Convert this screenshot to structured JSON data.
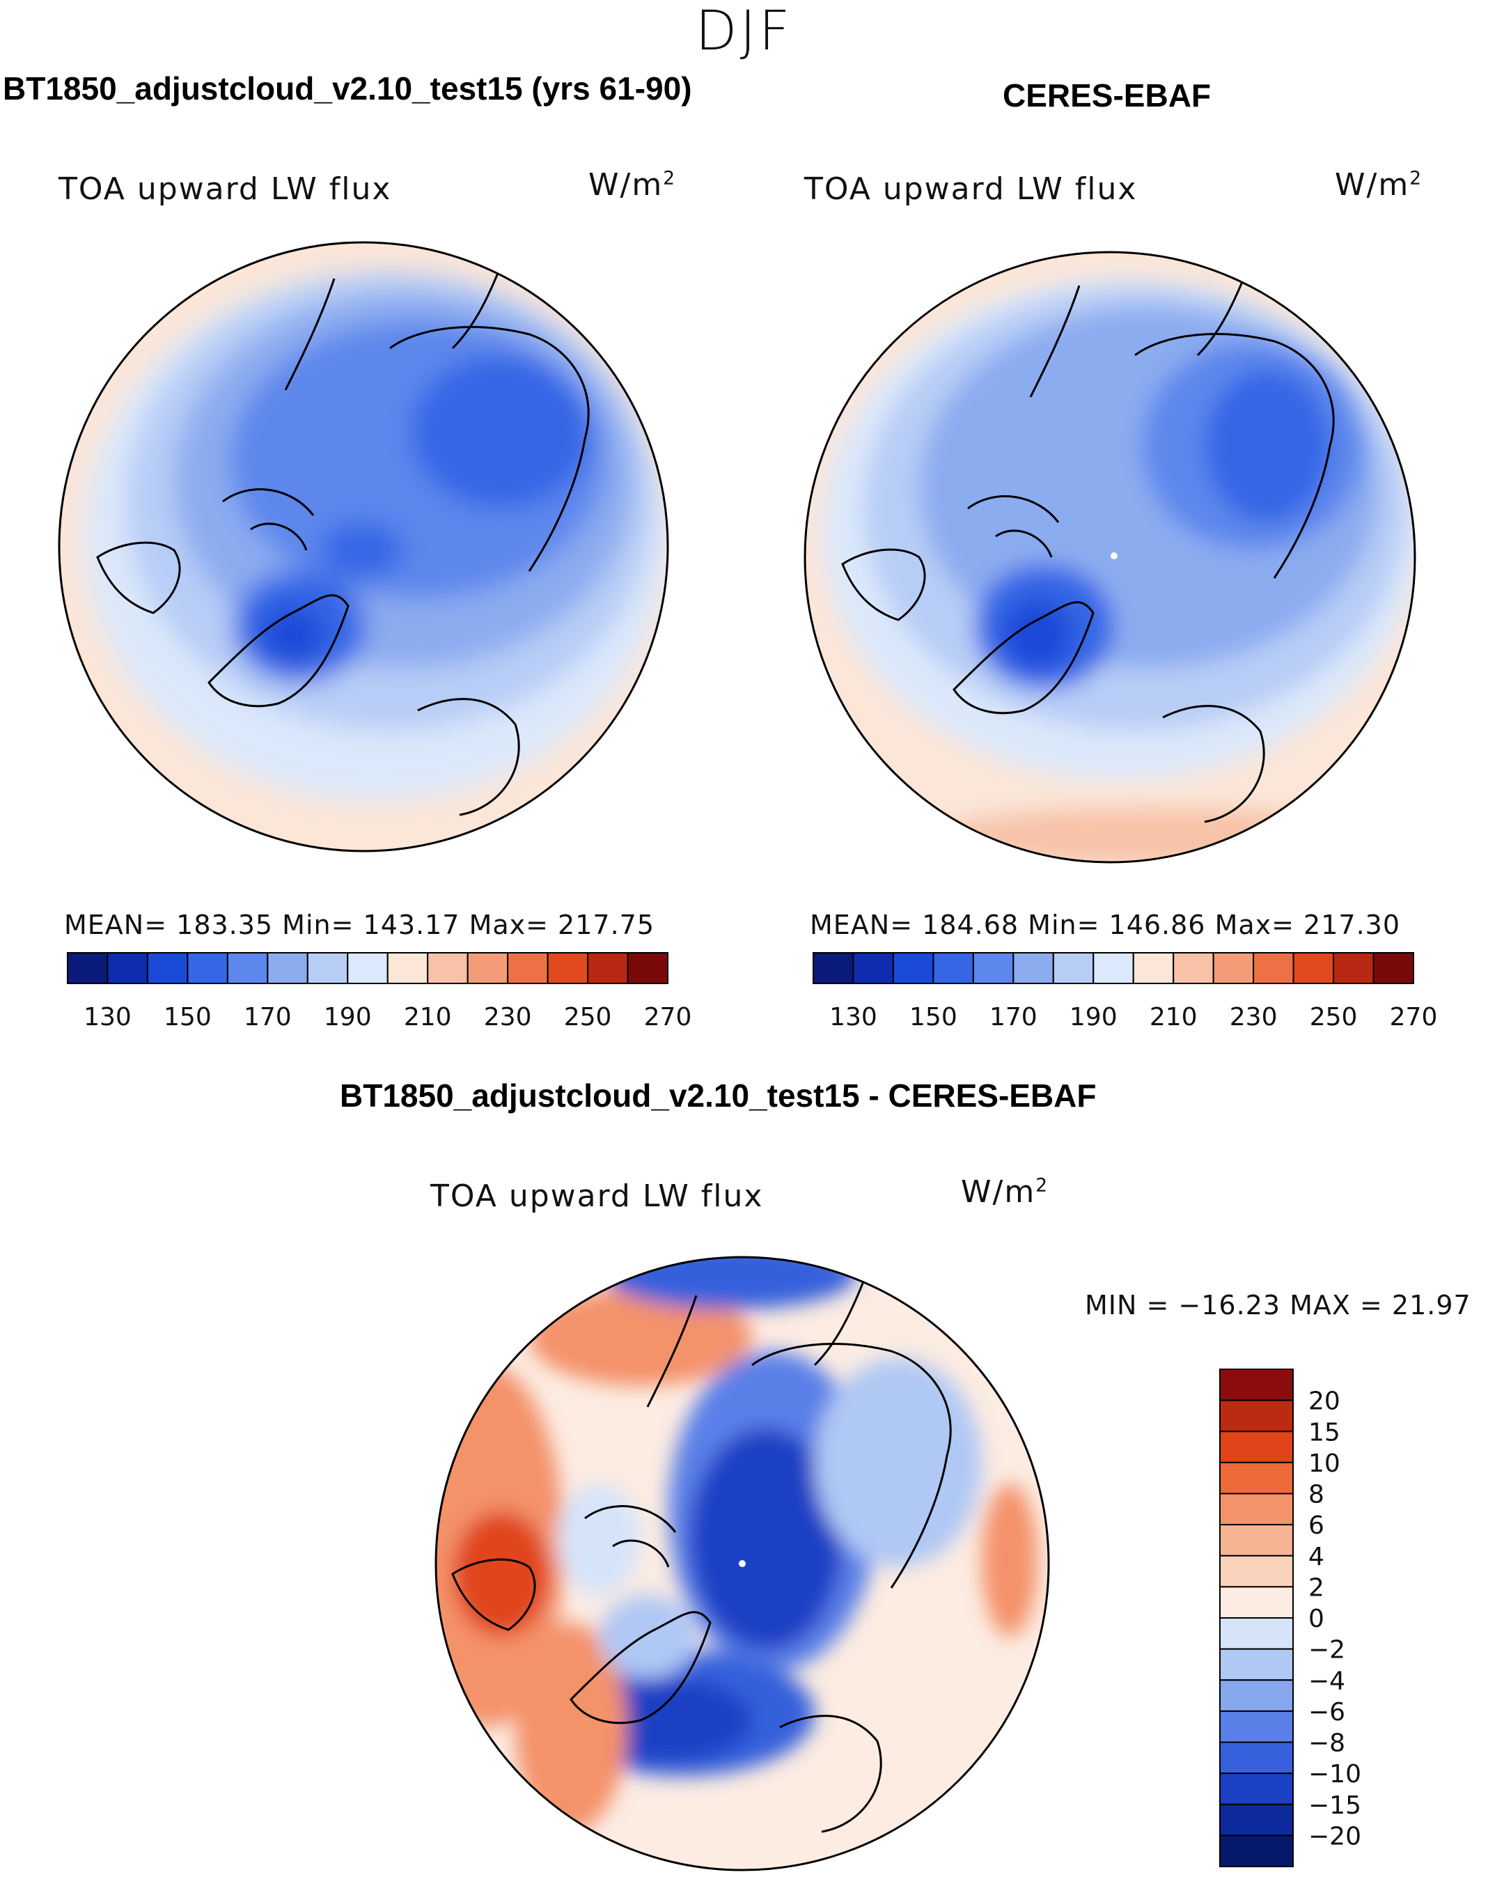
{
  "figure": {
    "season": "DJF"
  },
  "panels": {
    "model": {
      "title": "BT1850_adjustcloud_v2.10_test15 (yrs 61-90)",
      "variable": "TOA upward LW flux",
      "units_base": "W/m",
      "units_exp": "2",
      "stats": "MEAN= 183.35   Min= 143.17   Max= 217.75",
      "mean": 183.35,
      "min": 143.17,
      "max": 217.75
    },
    "obs": {
      "title": "CERES-EBAF",
      "variable": "TOA upward LW flux",
      "units_base": "W/m",
      "units_exp": "2",
      "stats": "MEAN= 184.68   Min= 146.86   Max= 217.30",
      "mean": 184.68,
      "min": 146.86,
      "max": 217.3
    },
    "diff": {
      "title": "BT1850_adjustcloud_v2.10_test15 - CERES-EBAF",
      "variable": "TOA upward LW flux",
      "units_base": "W/m",
      "units_exp": "2",
      "stats": "MIN = −16.23 MAX =   21.97",
      "min": -16.23,
      "max": 21.97
    }
  },
  "colorbars": {
    "abs": {
      "tick_labels": [
        "130",
        "150",
        "170",
        "190",
        "210",
        "230",
        "250",
        "270"
      ],
      "colors": [
        "#0a1a78",
        "#0d2cb0",
        "#1c4ad8",
        "#3566e6",
        "#5d87ec",
        "#8cacf0",
        "#b8cdf6",
        "#dce8fb",
        "#fbe6d8",
        "#f7c2a8",
        "#f39c78",
        "#ee7146",
        "#e04a1e",
        "#b82812",
        "#7a0a0a"
      ]
    },
    "diff": {
      "tick_labels": [
        "20",
        "15",
        "10",
        "8",
        "6",
        "4",
        "2",
        "0",
        "−2",
        "−4",
        "−6",
        "−8",
        "−10",
        "−15",
        "−20"
      ],
      "colors": [
        "#8a0c0c",
        "#bd2a12",
        "#e0441a",
        "#ef6a3a",
        "#f4926a",
        "#f6b494",
        "#f9d2bc",
        "#fcece2",
        "#d6e4fa",
        "#b0c8f4",
        "#86a6ee",
        "#5a80e8",
        "#3660dc",
        "#1c40c4",
        "#0c2a9c",
        "#06186c"
      ]
    }
  },
  "chart_data": [
    {
      "type": "heatmap",
      "title": "BT1850_adjustcloud_v2.10_test15 (yrs 61-90)",
      "projection": "north polar stereographic",
      "variable": "TOA upward LW flux",
      "units": "W/m2",
      "levels": [
        130,
        140,
        150,
        160,
        170,
        180,
        190,
        200,
        210,
        220,
        230,
        240,
        250,
        260,
        270
      ],
      "stats": {
        "mean": 183.35,
        "min": 143.17,
        "max": 217.75
      }
    },
    {
      "type": "heatmap",
      "title": "CERES-EBAF",
      "projection": "north polar stereographic",
      "variable": "TOA upward LW flux",
      "units": "W/m2",
      "levels": [
        130,
        140,
        150,
        160,
        170,
        180,
        190,
        200,
        210,
        220,
        230,
        240,
        250,
        260,
        270
      ],
      "stats": {
        "mean": 184.68,
        "min": 146.86,
        "max": 217.3
      }
    },
    {
      "type": "heatmap",
      "title": "BT1850_adjustcloud_v2.10_test15 - CERES-EBAF",
      "projection": "north polar stereographic",
      "variable": "TOA upward LW flux",
      "units": "W/m2",
      "levels": [
        -20,
        -15,
        -10,
        -8,
        -6,
        -4,
        -2,
        0,
        2,
        4,
        6,
        8,
        10,
        15,
        20
      ],
      "stats": {
        "min": -16.23,
        "max": 21.97
      }
    }
  ]
}
